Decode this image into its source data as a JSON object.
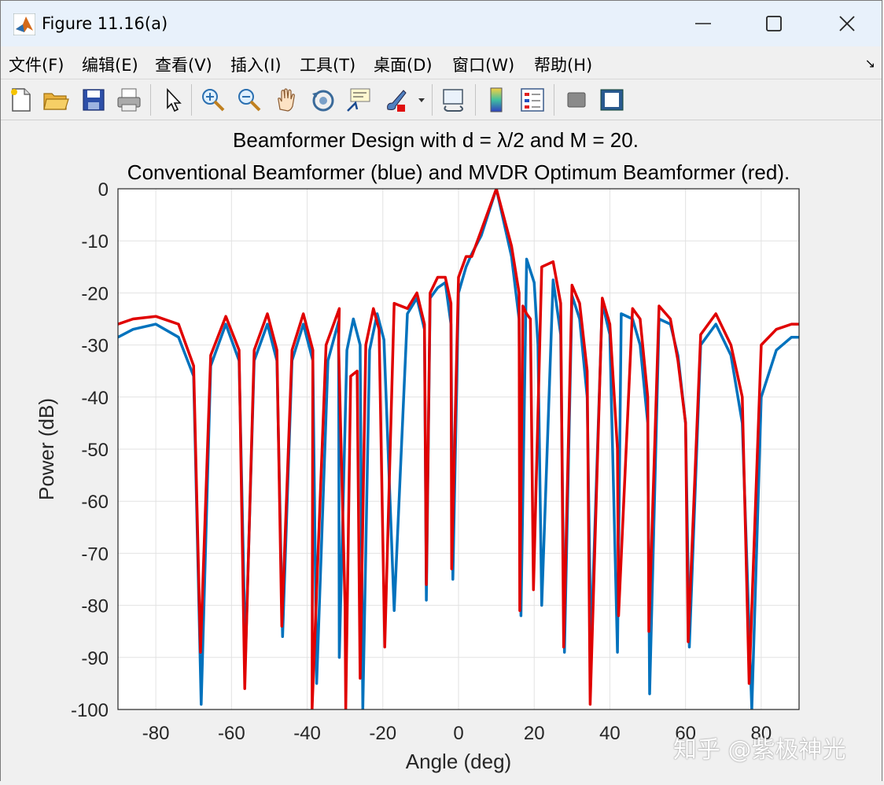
{
  "window": {
    "title": "Figure 11.16(a)",
    "icon": "matlab-icon",
    "controls": [
      "minimize-icon",
      "maximize-icon",
      "close-icon"
    ]
  },
  "menu": {
    "items": [
      "文件(F)",
      "编辑(E)",
      "查看(V)",
      "插入(I)",
      "工具(T)",
      "桌面(D)",
      "窗口(W)",
      "帮助(H)"
    ],
    "overflow_icon": "dock-arrow-icon"
  },
  "toolbar": {
    "icons": [
      "new-figure-icon",
      "open-file-icon",
      "save-icon",
      "print-icon",
      "pointer-icon",
      "zoom-in-icon",
      "zoom-out-icon",
      "pan-icon",
      "rotate-3d-icon",
      "data-cursor-icon",
      "brush-icon",
      "brush-dropdown-icon",
      "link-plot-icon",
      "colorbar-icon",
      "legend-icon",
      "hide-plot-tools-icon",
      "show-plot-tools-icon"
    ]
  },
  "chart_data": {
    "type": "line",
    "title": "Beamformer Design with d = λ/2 and M = 20.",
    "subtitle": "Conventional Beamformer (blue) and MVDR Optimum Beamformer (red).",
    "xlabel": "Angle (deg)",
    "ylabel": "Power (dB)",
    "xlim": [
      -90,
      90
    ],
    "ylim": [
      -100,
      0
    ],
    "xticks": [
      "-80",
      "-60",
      "-40",
      "-20",
      "0",
      "20",
      "40",
      "60",
      "80"
    ],
    "yticks": [
      "0",
      "-10",
      "-20",
      "-30",
      "-40",
      "-50",
      "-60",
      "-70",
      "-80",
      "-90",
      "-100"
    ],
    "grid": true,
    "colors": {
      "blue": "#0072bd",
      "red": "#e00000"
    },
    "series": [
      {
        "color": "#0072bd",
        "x": [
          -90,
          -86,
          -80,
          -74,
          -70,
          -68,
          -65.5,
          -61.5,
          -58,
          -56.3,
          -54,
          -50.5,
          -48,
          -46.5,
          -44,
          -41,
          -38.5,
          -37.5,
          -34.5,
          -31.7,
          -31.5,
          -29.5,
          -27.8,
          -26,
          -25.3,
          -23.5,
          -21.5,
          -19.7,
          -17,
          -13.5,
          -11,
          -9,
          -8.5,
          -7.5,
          -5.5,
          -3.5,
          -2,
          -1.5,
          0,
          2,
          3.5,
          6,
          10,
          14,
          16,
          16.5,
          18,
          20,
          21,
          22,
          25,
          27,
          28,
          30,
          32,
          34,
          35,
          38,
          40,
          42,
          43,
          46,
          48,
          50,
          50.5,
          53,
          56,
          58,
          60,
          61,
          64,
          68,
          72,
          75,
          77.5,
          80,
          84,
          88,
          90
        ],
        "y": [
          -28.5,
          -27,
          -26,
          -28.5,
          -36,
          -99,
          -34,
          -26,
          -33,
          -90,
          -33,
          -26,
          -33,
          -86,
          -33,
          -26,
          -33,
          -95,
          -33,
          -25.5,
          -90,
          -31,
          -25,
          -30,
          -100,
          -31,
          -24,
          -29,
          -81,
          -24,
          -21,
          -27,
          -79,
          -21,
          -19,
          -18,
          -26,
          -75,
          -20,
          -15,
          -12.5,
          -9,
          0,
          -13,
          -25,
          -82,
          -13.5,
          -18,
          -30,
          -80,
          -17.5,
          -28,
          -89,
          -20.5,
          -25,
          -40,
          -88,
          -22,
          -28,
          -89,
          -24,
          -25,
          -30,
          -45,
          -97,
          -25,
          -26,
          -32,
          -45,
          -88,
          -30,
          -26,
          -32,
          -45,
          -100,
          -40,
          -31,
          -28.5,
          -28.5
        ]
      },
      {
        "color": "#e00000",
        "x": [
          -90,
          -86,
          -80,
          -74,
          -70,
          -68.2,
          -65.5,
          -61.5,
          -58,
          -56.5,
          -54,
          -50.5,
          -48,
          -46.7,
          -44,
          -41,
          -38.5,
          -38.7,
          -35,
          -31.5,
          -31.7,
          -30,
          -29.8,
          -28.5,
          -26.8,
          -26,
          -24.5,
          -22.5,
          -21,
          -19.5,
          -17,
          -13.5,
          -11,
          -9,
          -8.5,
          -7.5,
          -5.5,
          -3.5,
          -2,
          -1.8,
          0,
          2,
          3.5,
          6,
          10,
          14,
          16,
          16.2,
          17,
          18,
          19,
          19.8,
          22,
          25,
          27,
          27.8,
          30,
          32,
          34,
          34.8,
          38,
          40,
          42,
          42.3,
          46,
          48,
          50,
          50.3,
          53,
          56,
          58,
          60,
          60.7,
          64,
          68,
          72,
          75,
          76.8,
          80,
          84,
          88,
          90
        ],
        "y": [
          -26,
          -25,
          -24.5,
          -26,
          -34,
          -89,
          -32,
          -24.5,
          -31,
          -96,
          -31,
          -24,
          -31,
          -84,
          -31,
          -24,
          -31,
          -100,
          -30,
          -23,
          -30,
          -80,
          -100,
          -36,
          -35,
          -94,
          -30,
          -23,
          -27,
          -88,
          -22,
          -23,
          -20,
          -26,
          -76,
          -20,
          -17,
          -17,
          -22,
          -73,
          -17,
          -13,
          -13,
          -8,
          0,
          -11,
          -20,
          -81,
          -22.5,
          -24,
          -25,
          -77,
          -15,
          -14,
          -22,
          -88,
          -18.5,
          -22,
          -35,
          -99,
          -21,
          -26,
          -50,
          -82,
          -23,
          -25,
          -40,
          -85,
          -22.5,
          -25,
          -33,
          -45,
          -87,
          -28,
          -24,
          -30,
          -40,
          -95,
          -30,
          -27,
          -26,
          -26
        ]
      }
    ]
  },
  "watermark": "知乎 @紫极神光"
}
